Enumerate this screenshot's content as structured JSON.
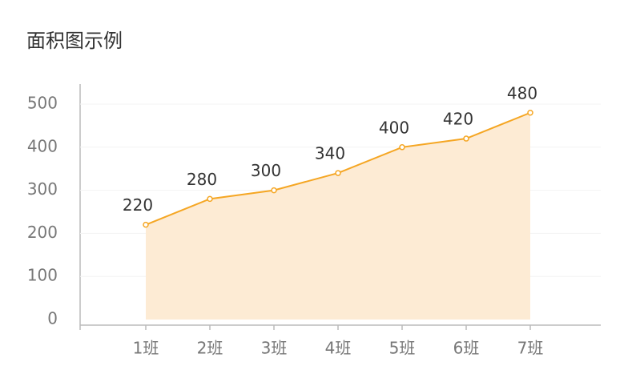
{
  "chart_data": {
    "type": "area",
    "title": "面积图示例",
    "categories": [
      "1班",
      "2班",
      "3班",
      "4班",
      "5班",
      "6班",
      "7班"
    ],
    "values": [
      220,
      280,
      300,
      340,
      400,
      420,
      480
    ],
    "color": "#f5a623",
    "fill": "#fdebd4",
    "ylim": [
      0,
      500
    ],
    "yticks": [
      0,
      100,
      200,
      300,
      400,
      500
    ],
    "grid": true
  }
}
